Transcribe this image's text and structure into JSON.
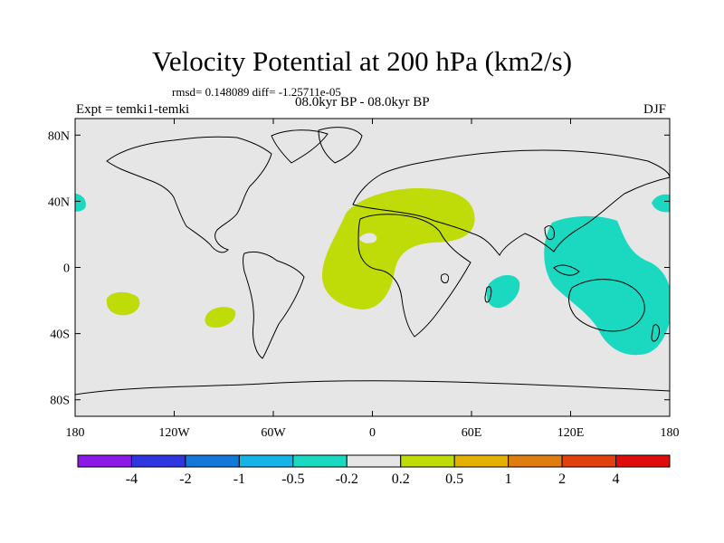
{
  "title": "Velocity Potential at 200 hPa (km2/s)",
  "stats": "rmsd= 0.148089 diff= -1.25711e-05",
  "period": "08.0kyr BP - 08.0kyr BP",
  "experiment": "Expt = temki1-temki",
  "season": "DJF",
  "map": {
    "projection": "cylindrical-equidistant",
    "lon_range": [
      -180,
      180
    ],
    "lat_range": [
      -90,
      90
    ],
    "background_color": "#e6e6e6",
    "coastline_color": "#000000",
    "x_ticks": [
      {
        "lon": -180,
        "label": "180"
      },
      {
        "lon": -120,
        "label": "120W"
      },
      {
        "lon": -60,
        "label": "60W"
      },
      {
        "lon": 0,
        "label": "0"
      },
      {
        "lon": 60,
        "label": "60E"
      },
      {
        "lon": 120,
        "label": "120E"
      },
      {
        "lon": 180,
        "label": "180"
      }
    ],
    "y_ticks": [
      {
        "lat": 80,
        "label": "80N"
      },
      {
        "lat": 40,
        "label": "40N"
      },
      {
        "lat": 0,
        "label": "0"
      },
      {
        "lat": -40,
        "label": "40S"
      },
      {
        "lat": -80,
        "label": "80S"
      }
    ],
    "anomaly_regions": [
      {
        "name": "africa-atlantic-positive",
        "range": "0.2 to 0.5",
        "color": "#bfdb08"
      },
      {
        "name": "indo-pacific-negative",
        "range": "-0.5 to -0.2",
        "color": "#1ad9c0"
      },
      {
        "name": "south-pacific-positive-west",
        "range": "0.2 to 0.5",
        "color": "#bfdb08"
      },
      {
        "name": "south-pacific-positive-east",
        "range": "0.2 to 0.5",
        "color": "#bfdb08"
      },
      {
        "name": "indian-ocean-negative",
        "range": "-0.5 to -0.2",
        "color": "#1ad9c0"
      },
      {
        "name": "dateline-negative",
        "range": "-0.5 to -0.2",
        "color": "#1ad9c0"
      }
    ]
  },
  "colorbar": {
    "colors": [
      "#8a1ae6",
      "#2f36e0",
      "#1478d8",
      "#16b4e6",
      "#1ad9c0",
      "#e6e6e6",
      "#bfdb08",
      "#e3b000",
      "#e07d10",
      "#e0420c",
      "#e00c0c"
    ],
    "labels": [
      "-4",
      "-2",
      "-1",
      "-0.5",
      "-0.2",
      "0.2",
      "0.5",
      "1",
      "2",
      "4"
    ]
  }
}
